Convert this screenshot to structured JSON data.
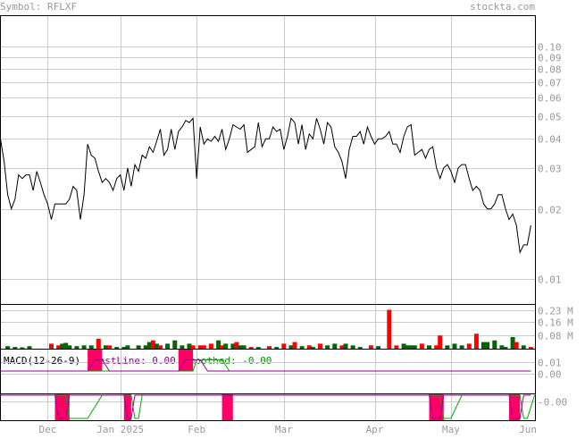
{
  "header": {
    "symbol_label": "Symbol: RFLXF",
    "site": "stockta.com"
  },
  "chart_data": [
    {
      "type": "line",
      "panel": "price",
      "scale": "log",
      "ylim": [
        0.0078,
        0.136
      ],
      "yticks": [
        "0.10",
        "0.09",
        "0.08",
        "0.07",
        "0.06",
        "0.05",
        "0.04",
        "0.03",
        "0.02",
        "0.01"
      ],
      "ytick_values": [
        0.1,
        0.09,
        0.08,
        0.07,
        0.06,
        0.05,
        0.04,
        0.03,
        0.02,
        0.01
      ],
      "xlabels": [
        "Dec",
        "Jan 2025",
        "Feb",
        "Mar",
        "Apr",
        "May",
        "Jun"
      ],
      "xlabel_index": [
        13,
        33,
        54,
        78,
        103,
        124,
        147
      ],
      "grid": true,
      "values": [
        0.04,
        0.032,
        0.023,
        0.02,
        0.022,
        0.028,
        0.027,
        0.028,
        0.028,
        0.024,
        0.029,
        0.026,
        0.023,
        0.021,
        0.018,
        0.021,
        0.021,
        0.021,
        0.021,
        0.022,
        0.025,
        0.024,
        0.018,
        0.023,
        0.038,
        0.034,
        0.033,
        0.029,
        0.026,
        0.027,
        0.026,
        0.024,
        0.027,
        0.028,
        0.024,
        0.03,
        0.025,
        0.031,
        0.029,
        0.034,
        0.033,
        0.037,
        0.035,
        0.039,
        0.044,
        0.034,
        0.036,
        0.044,
        0.036,
        0.043,
        0.045,
        0.048,
        0.047,
        0.049,
        0.027,
        0.045,
        0.038,
        0.04,
        0.039,
        0.041,
        0.039,
        0.044,
        0.036,
        0.04,
        0.046,
        0.045,
        0.044,
        0.046,
        0.035,
        0.036,
        0.037,
        0.047,
        0.037,
        0.04,
        0.04,
        0.045,
        0.043,
        0.044,
        0.036,
        0.041,
        0.049,
        0.047,
        0.038,
        0.046,
        0.036,
        0.042,
        0.04,
        0.049,
        0.044,
        0.038,
        0.047,
        0.045,
        0.037,
        0.035,
        0.032,
        0.027,
        0.036,
        0.041,
        0.041,
        0.043,
        0.038,
        0.045,
        0.041,
        0.038,
        0.04,
        0.04,
        0.041,
        0.043,
        0.038,
        0.038,
        0.035,
        0.041,
        0.045,
        0.046,
        0.034,
        0.035,
        0.036,
        0.033,
        0.036,
        0.037,
        0.03,
        0.027,
        0.03,
        0.031,
        0.029,
        0.026,
        0.03,
        0.031,
        0.031,
        0.027,
        0.024,
        0.025,
        0.024,
        0.021,
        0.02,
        0.02,
        0.021,
        0.023,
        0.023,
        0.02,
        0.018,
        0.019,
        0.017,
        0.013,
        0.014,
        0.014,
        0.017
      ]
    },
    {
      "type": "bar",
      "panel": "volume",
      "ylim": [
        0,
        0.27
      ],
      "yticks": [
        "0.23 M",
        "0.16 M",
        "0.08 M"
      ],
      "ytick_values": [
        0.23,
        0.16,
        0.08
      ],
      "units": "M",
      "bars": [
        {
          "i": 2,
          "v": 0.015,
          "c": "g"
        },
        {
          "i": 4,
          "v": 0.01,
          "c": "g"
        },
        {
          "i": 6,
          "v": 0.008,
          "c": "g"
        },
        {
          "i": 8,
          "v": 0.015,
          "c": "g"
        },
        {
          "i": 14,
          "v": 0.03,
          "c": "r"
        },
        {
          "i": 16,
          "v": 0.02,
          "c": "r"
        },
        {
          "i": 17,
          "v": 0.03,
          "c": "g"
        },
        {
          "i": 18,
          "v": 0.035,
          "c": "g"
        },
        {
          "i": 19,
          "v": 0.02,
          "c": "g"
        },
        {
          "i": 21,
          "v": 0.015,
          "c": "g"
        },
        {
          "i": 23,
          "v": 0.02,
          "c": "g"
        },
        {
          "i": 25,
          "v": 0.02,
          "c": "g"
        },
        {
          "i": 27,
          "v": 0.06,
          "c": "r"
        },
        {
          "i": 29,
          "v": 0.02,
          "c": "g"
        },
        {
          "i": 30,
          "v": 0.02,
          "c": "r"
        },
        {
          "i": 32,
          "v": 0.01,
          "c": "g"
        },
        {
          "i": 34,
          "v": 0.01,
          "c": "g"
        },
        {
          "i": 35,
          "v": 0.02,
          "c": "g"
        },
        {
          "i": 38,
          "v": 0.02,
          "c": "g"
        },
        {
          "i": 40,
          "v": 0.02,
          "c": "g"
        },
        {
          "i": 41,
          "v": 0.04,
          "c": "g"
        },
        {
          "i": 42,
          "v": 0.05,
          "c": "r"
        },
        {
          "i": 43,
          "v": 0.03,
          "c": "g"
        },
        {
          "i": 44,
          "v": 0.02,
          "c": "r"
        },
        {
          "i": 46,
          "v": 0.03,
          "c": "g"
        },
        {
          "i": 48,
          "v": 0.05,
          "c": "g"
        },
        {
          "i": 50,
          "v": 0.02,
          "c": "g"
        },
        {
          "i": 52,
          "v": 0.03,
          "c": "g"
        },
        {
          "i": 53,
          "v": 0.02,
          "c": "r"
        },
        {
          "i": 55,
          "v": 0.02,
          "c": "r"
        },
        {
          "i": 56,
          "v": 0.02,
          "c": "r"
        },
        {
          "i": 58,
          "v": 0.03,
          "c": "r"
        },
        {
          "i": 60,
          "v": 0.05,
          "c": "g"
        },
        {
          "i": 61,
          "v": 0.02,
          "c": "r"
        },
        {
          "i": 62,
          "v": 0.03,
          "c": "g"
        },
        {
          "i": 64,
          "v": 0.03,
          "c": "g"
        },
        {
          "i": 65,
          "v": 0.04,
          "c": "r"
        },
        {
          "i": 66,
          "v": 0.02,
          "c": "g"
        },
        {
          "i": 67,
          "v": 0.02,
          "c": "g"
        },
        {
          "i": 69,
          "v": 0.01,
          "c": "r"
        },
        {
          "i": 71,
          "v": 0.01,
          "c": "g"
        },
        {
          "i": 74,
          "v": 0.015,
          "c": "r"
        },
        {
          "i": 76,
          "v": 0.01,
          "c": "g"
        },
        {
          "i": 78,
          "v": 0.03,
          "c": "r"
        },
        {
          "i": 80,
          "v": 0.02,
          "c": "g"
        },
        {
          "i": 81,
          "v": 0.04,
          "c": "r"
        },
        {
          "i": 83,
          "v": 0.015,
          "c": "g"
        },
        {
          "i": 85,
          "v": 0.02,
          "c": "r"
        },
        {
          "i": 86,
          "v": 0.01,
          "c": "g"
        },
        {
          "i": 88,
          "v": 0.03,
          "c": "r"
        },
        {
          "i": 90,
          "v": 0.02,
          "c": "g"
        },
        {
          "i": 92,
          "v": 0.03,
          "c": "g"
        },
        {
          "i": 94,
          "v": 0.02,
          "c": "r"
        },
        {
          "i": 95,
          "v": 0.03,
          "c": "g"
        },
        {
          "i": 97,
          "v": 0.02,
          "c": "g"
        },
        {
          "i": 99,
          "v": 0.01,
          "c": "g"
        },
        {
          "i": 102,
          "v": 0.02,
          "c": "r"
        },
        {
          "i": 104,
          "v": 0.015,
          "c": "g"
        },
        {
          "i": 107,
          "v": 0.235,
          "c": "r"
        },
        {
          "i": 109,
          "v": 0.02,
          "c": "r"
        },
        {
          "i": 111,
          "v": 0.03,
          "c": "g"
        },
        {
          "i": 112,
          "v": 0.02,
          "c": "g"
        },
        {
          "i": 113,
          "v": 0.02,
          "c": "g"
        },
        {
          "i": 114,
          "v": 0.02,
          "c": "g"
        },
        {
          "i": 116,
          "v": 0.03,
          "c": "r"
        },
        {
          "i": 118,
          "v": 0.02,
          "c": "g"
        },
        {
          "i": 120,
          "v": 0.02,
          "c": "r"
        },
        {
          "i": 121,
          "v": 0.08,
          "c": "r"
        },
        {
          "i": 123,
          "v": 0.02,
          "c": "g"
        },
        {
          "i": 125,
          "v": 0.03,
          "c": "g"
        },
        {
          "i": 127,
          "v": 0.02,
          "c": "g"
        },
        {
          "i": 129,
          "v": 0.03,
          "c": "r"
        },
        {
          "i": 131,
          "v": 0.09,
          "c": "r"
        },
        {
          "i": 133,
          "v": 0.04,
          "c": "g"
        },
        {
          "i": 134,
          "v": 0.04,
          "c": "g"
        },
        {
          "i": 136,
          "v": 0.05,
          "c": "g"
        },
        {
          "i": 138,
          "v": 0.02,
          "c": "g"
        },
        {
          "i": 139,
          "v": 0.01,
          "c": "g"
        },
        {
          "i": 141,
          "v": 0.07,
          "c": "g"
        },
        {
          "i": 142,
          "v": 0.04,
          "c": "r"
        },
        {
          "i": 144,
          "v": 0.02,
          "c": "g"
        },
        {
          "i": 146,
          "v": 0.01,
          "c": "r"
        }
      ]
    },
    {
      "type": "line",
      "panel": "macd",
      "title": "MACD(12-26-9)",
      "fastline_label": "FastLine: 0.00",
      "smoothed_label": "Smoothed: -0.00",
      "ylim": [
        -0.018,
        0.022
      ],
      "yticks": [
        "0.01",
        "0.00",
        "-0.00"
      ],
      "ytick_values": [
        0.01,
        0.0,
        -0.006
      ],
      "grid": true,
      "fast": [
        [
          0,
          0.002
        ],
        [
          24,
          0.002
        ],
        [
          26,
          0.012
        ],
        [
          28,
          0.012
        ],
        [
          30,
          0.002
        ],
        [
          49,
          0.002
        ],
        [
          51,
          0.012
        ],
        [
          55,
          0.012
        ],
        [
          57,
          0.002
        ],
        [
          146,
          0.002
        ]
      ],
      "smooth": [
        [
          0,
          0.002
        ],
        [
          53,
          0.002
        ],
        [
          54,
          0.012
        ],
        [
          61,
          0.012
        ],
        [
          63,
          0.002
        ],
        [
          146,
          0.002
        ]
      ],
      "histogram_boxes": [
        [
          24,
          28,
          0.002,
          0.022
        ],
        [
          49,
          53,
          0.002,
          0.022
        ]
      ]
    },
    {
      "type": "line",
      "panel": "signal",
      "ylim": [
        -1.0,
        1.0
      ],
      "fast": [
        [
          0,
          1
        ],
        [
          15,
          1
        ],
        [
          16,
          -1
        ],
        [
          18,
          -1
        ],
        [
          19,
          1
        ],
        [
          34,
          1
        ],
        [
          35,
          -1
        ],
        [
          36,
          -1
        ],
        [
          37,
          1
        ],
        [
          118,
          1
        ],
        [
          119,
          -1
        ],
        [
          121,
          -1
        ],
        [
          122,
          1
        ],
        [
          140,
          1
        ],
        [
          141,
          -1
        ],
        [
          143,
          -1
        ],
        [
          144,
          1
        ],
        [
          146,
          1
        ]
      ],
      "smooth": [
        [
          0,
          1
        ],
        [
          18,
          1
        ],
        [
          19,
          -1
        ],
        [
          24,
          -1
        ],
        [
          28,
          1
        ],
        [
          36,
          1
        ],
        [
          37,
          -1
        ],
        [
          38,
          -1
        ],
        [
          39,
          1
        ],
        [
          121,
          1
        ],
        [
          122,
          -1
        ],
        [
          124,
          -1
        ],
        [
          127,
          1
        ],
        [
          143,
          1
        ],
        [
          144,
          -1
        ],
        [
          145,
          -1
        ],
        [
          147,
          1
        ]
      ],
      "boxes": [
        [
          15,
          19
        ],
        [
          34,
          36
        ],
        [
          61,
          64
        ],
        [
          118,
          122
        ],
        [
          140,
          143
        ]
      ]
    }
  ],
  "colors": {
    "price_line": "#000000",
    "volume_up": "#006600",
    "volume_down": "#ff0000",
    "macd_title": "#000000",
    "fastline_text": "#990099",
    "smoothed_text": "#009900",
    "fast_line": "#990099",
    "smooth_line": "#00aa00",
    "box_fill": "#ff0066",
    "label_text": "#999999"
  }
}
